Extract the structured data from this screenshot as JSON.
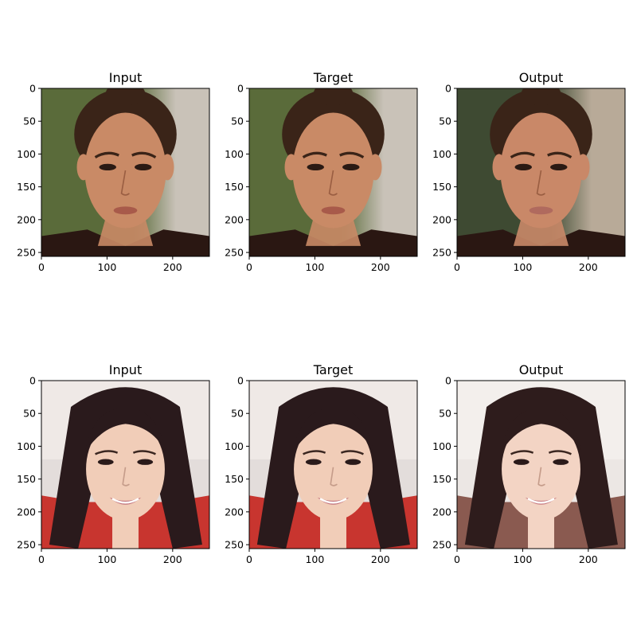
{
  "chart_data": [
    {
      "type": "image",
      "title": "Input",
      "xlim": [
        0,
        256
      ],
      "ylim": [
        256,
        0
      ],
      "xticks": [
        0,
        100,
        200
      ],
      "yticks": [
        0,
        50,
        100,
        150,
        200,
        250
      ],
      "scene": {
        "subject": "face1",
        "bg": "#5a6b3a",
        "bg2": "#c9c2b8",
        "skin": "#c98a66",
        "hair": "#3a2418",
        "lips": "#a85a4a"
      }
    },
    {
      "type": "image",
      "title": "Target",
      "xlim": [
        0,
        256
      ],
      "ylim": [
        256,
        0
      ],
      "xticks": [
        0,
        100,
        200
      ],
      "yticks": [
        0,
        50,
        100,
        150,
        200,
        250
      ],
      "scene": {
        "subject": "face1",
        "bg": "#5a6b3a",
        "bg2": "#c9c2b8",
        "skin": "#c98a66",
        "hair": "#3a2418",
        "lips": "#a85a4a"
      }
    },
    {
      "type": "image",
      "title": "Output",
      "xlim": [
        0,
        256
      ],
      "ylim": [
        256,
        0
      ],
      "xticks": [
        0,
        100,
        200
      ],
      "yticks": [
        0,
        50,
        100,
        150,
        200,
        250
      ],
      "scene": {
        "subject": "face1",
        "bg": "#3e4a32",
        "bg2": "#b8aa98",
        "skin": "#c98868",
        "hair": "#3a2418",
        "lips": "#b06a5e"
      }
    },
    {
      "type": "image",
      "title": "Input",
      "xlim": [
        0,
        256
      ],
      "ylim": [
        256,
        0
      ],
      "xticks": [
        0,
        100,
        200
      ],
      "yticks": [
        0,
        50,
        100,
        150,
        200,
        250
      ],
      "scene": {
        "subject": "face2",
        "bg": "#efe9e6",
        "bg2": "#d8d2cf",
        "skin": "#f1cdb8",
        "hair": "#2a1a1c",
        "lips": "#c0707a",
        "shirt": "#c8352f"
      }
    },
    {
      "type": "image",
      "title": "Target",
      "xlim": [
        0,
        256
      ],
      "ylim": [
        256,
        0
      ],
      "xticks": [
        0,
        100,
        200
      ],
      "yticks": [
        0,
        50,
        100,
        150,
        200,
        250
      ],
      "scene": {
        "subject": "face2",
        "bg": "#efe9e6",
        "bg2": "#d8d2cf",
        "skin": "#f1cdb8",
        "hair": "#2a1a1c",
        "lips": "#c0707a",
        "shirt": "#c8352f"
      }
    },
    {
      "type": "image",
      "title": "Output",
      "xlim": [
        0,
        256
      ],
      "ylim": [
        256,
        0
      ],
      "xticks": [
        0,
        100,
        200
      ],
      "yticks": [
        0,
        50,
        100,
        150,
        200,
        250
      ],
      "scene": {
        "subject": "face2",
        "bg": "#f3efec",
        "bg2": "#e6dfdb",
        "skin": "#f3d4c4",
        "hair": "#2e1c1c",
        "lips": "#c67a80",
        "shirt": "#8a5a50"
      }
    }
  ]
}
